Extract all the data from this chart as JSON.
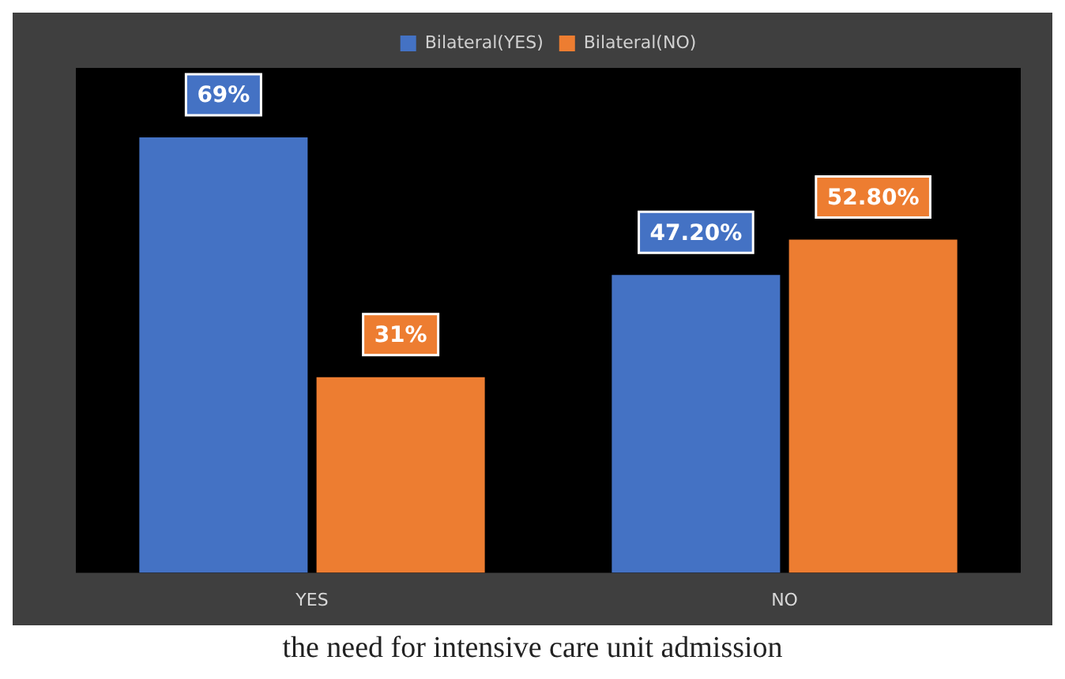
{
  "chart_data": {
    "type": "bar",
    "xlabel": "the need for intensive care unit admission",
    "categories": [
      "YES",
      "NO"
    ],
    "series": [
      {
        "name": "Bilateral(YES)",
        "color": "#4472c4",
        "values": [
          69,
          47.2
        ],
        "value_labels": [
          "69%",
          "47.20%"
        ]
      },
      {
        "name": "Bilateral(NO)",
        "color": "#ed7d31",
        "values": [
          31,
          52.8
        ],
        "value_labels": [
          "31%",
          "52.80%"
        ]
      }
    ],
    "legend": "top",
    "grid": false
  }
}
